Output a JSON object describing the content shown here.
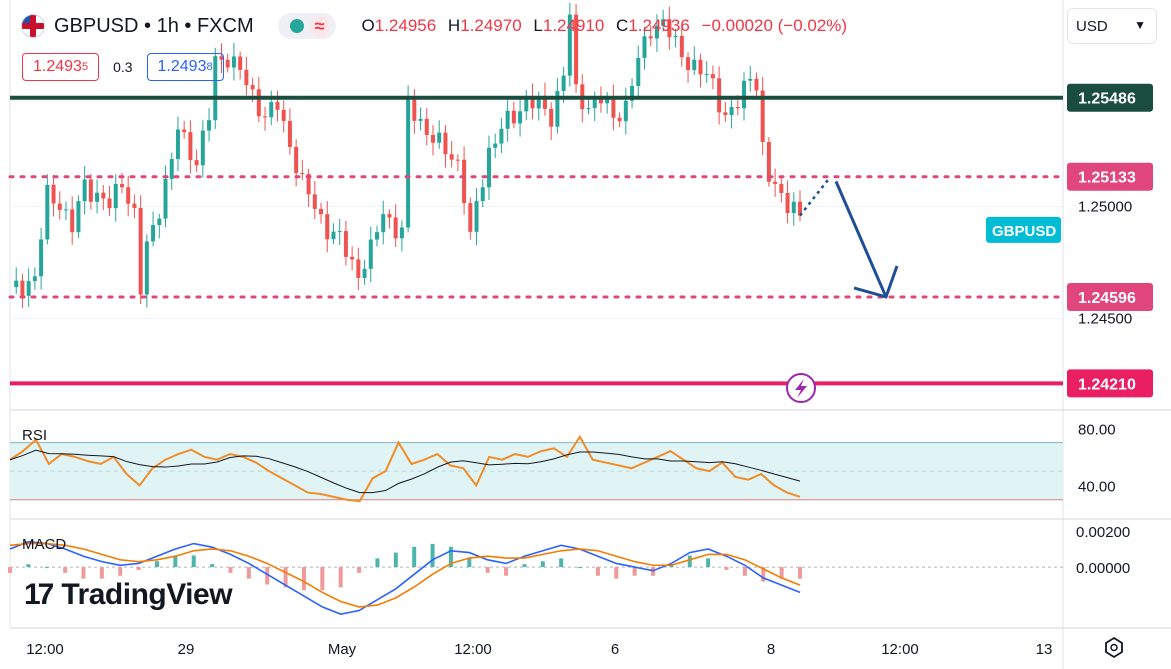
{
  "header": {
    "symbol": "GBPUSD • 1h • FXCM",
    "wave_glyph": "≈",
    "open_label": "O",
    "open": "1.24956",
    "high_label": "H",
    "high": "1.24970",
    "low_label": "L",
    "low": "1.24910",
    "close_label": "C",
    "close": "1.24936",
    "change": "−0.00020 (−0.02%)",
    "sell_price_main": "1.2493",
    "sell_price_small": "5",
    "spread": "0.3",
    "buy_price_main": "1.2493",
    "buy_price_small": "8",
    "currency": "USD"
  },
  "watermark": {
    "logo": "17",
    "text": "TradingView"
  },
  "colors": {
    "up": "#26a69a",
    "down": "#ef5350",
    "support_line": "#1b4d3e",
    "bottom_line": "#e91e63",
    "dotted_level": "#e0457b",
    "arrow": "#1e4e96",
    "rsi_line": "#f28c28",
    "rsi_ma": "#131722",
    "rsi_band": "#e0f4f6",
    "macd_line": "#2962ff",
    "signal_line": "#f57c00",
    "symbol_badge": "#00bcd4"
  },
  "chart_data": {
    "type": "candlestick",
    "symbol_badge": "GBPUSD",
    "ylim": [
      1.241,
      1.259
    ],
    "price_ticks": [
      1.25,
      1.245
    ],
    "price_tick_labels": [
      "1.25000",
      "1.24500"
    ],
    "levels": [
      {
        "value": 1.25486,
        "label": "1.25486",
        "style": "solid",
        "color": "#1b4d3e"
      },
      {
        "value": 1.25133,
        "label": "1.25133",
        "style": "dotted",
        "color": "#e0457b"
      },
      {
        "value": 1.24596,
        "label": "1.24596",
        "style": "dotted",
        "color": "#e0457b"
      },
      {
        "value": 1.2421,
        "label": "1.24210",
        "style": "solid",
        "color": "#e91e63"
      }
    ],
    "x_labels": [
      "12:00",
      "29",
      "May",
      "12:00",
      "6",
      "8",
      "12:00",
      "13"
    ],
    "price_path": [
      [
        0,
        1.2462
      ],
      [
        4,
        1.2468
      ],
      [
        6,
        1.2505
      ],
      [
        8,
        1.2502
      ],
      [
        10,
        1.249
      ],
      [
        12,
        1.251
      ],
      [
        14,
        1.2505
      ],
      [
        16,
        1.25
      ],
      [
        18,
        1.2512
      ],
      [
        20,
        1.2496
      ],
      [
        21,
        1.2462
      ],
      [
        22,
        1.2482
      ],
      [
        24,
        1.25
      ],
      [
        26,
        1.252
      ],
      [
        27,
        1.2535
      ],
      [
        28,
        1.253
      ],
      [
        30,
        1.252
      ],
      [
        32,
        1.254
      ],
      [
        33,
        1.2565
      ],
      [
        35,
        1.2567
      ],
      [
        37,
        1.256
      ],
      [
        39,
        1.255
      ],
      [
        41,
        1.254
      ],
      [
        43,
        1.2545
      ],
      [
        45,
        1.2528
      ],
      [
        47,
        1.251
      ],
      [
        49,
        1.25
      ],
      [
        51,
        1.249
      ],
      [
        53,
        1.2485
      ],
      [
        55,
        1.2475
      ],
      [
        56,
        1.247
      ],
      [
        58,
        1.248
      ],
      [
        60,
        1.2498
      ],
      [
        62,
        1.249
      ],
      [
        63,
        1.2488
      ],
      [
        64,
        1.2545
      ],
      [
        66,
        1.2538
      ],
      [
        68,
        1.253
      ],
      [
        70,
        1.2525
      ],
      [
        72,
        1.252
      ],
      [
        73,
        1.2505
      ],
      [
        74,
        1.2485
      ],
      [
        75,
        1.25
      ],
      [
        77,
        1.2525
      ],
      [
        79,
        1.2535
      ],
      [
        81,
        1.254
      ],
      [
        83,
        1.2548
      ],
      [
        85,
        1.2545
      ],
      [
        87,
        1.254
      ],
      [
        89,
        1.256
      ],
      [
        90,
        1.2585
      ],
      [
        91,
        1.255
      ],
      [
        93,
        1.2545
      ],
      [
        95,
        1.2548
      ],
      [
        97,
        1.254
      ],
      [
        99,
        1.2545
      ],
      [
        101,
        1.2565
      ],
      [
        103,
        1.258
      ],
      [
        105,
        1.2582
      ],
      [
        107,
        1.2572
      ],
      [
        109,
        1.2565
      ],
      [
        111,
        1.256
      ],
      [
        113,
        1.2555
      ],
      [
        115,
        1.254
      ],
      [
        117,
        1.2545
      ],
      [
        119,
        1.256
      ],
      [
        120,
        1.2555
      ],
      [
        121,
        1.2525
      ],
      [
        122,
        1.2512
      ],
      [
        124,
        1.2505
      ],
      [
        126,
        1.25
      ],
      [
        127,
        1.2494
      ]
    ],
    "projection": {
      "dotted_to": [
        1.2513
      ],
      "arrow_to": 1.24596
    },
    "rsi": {
      "label": "RSI",
      "ylim": [
        20,
        90
      ],
      "band": [
        30,
        70
      ],
      "ticks": [
        80,
        40
      ],
      "tick_labels": [
        "80.00",
        "40.00"
      ],
      "values": [
        58,
        64,
        72,
        55,
        62,
        60,
        57,
        55,
        60,
        48,
        40,
        52,
        58,
        62,
        65,
        60,
        58,
        62,
        60,
        56,
        50,
        45,
        40,
        35,
        34,
        32,
        30,
        29,
        45,
        50,
        70,
        55,
        58,
        62,
        54,
        52,
        40,
        60,
        58,
        62,
        60,
        64,
        66,
        60,
        74,
        58,
        56,
        54,
        52,
        56,
        60,
        64,
        58,
        52,
        50,
        56,
        46,
        44,
        48,
        40,
        35,
        32
      ]
    },
    "macd": {
      "label": "MACD",
      "ylim": [
        -0.0032,
        0.0026
      ],
      "ticks": [
        0.002,
        0.0
      ],
      "tick_labels": [
        "0.00200",
        "0.00000"
      ],
      "macd": [
        0.001,
        0.0014,
        0.0013,
        0.001,
        0.0006,
        0.0003,
        0.0001,
        0.0002,
        0.0006,
        0.001,
        0.0013,
        0.0011,
        0.0007,
        0.0002,
        -0.0004,
        -0.001,
        -0.0016,
        -0.0022,
        -0.0026,
        -0.0024,
        -0.0018,
        -0.0012,
        -0.0004,
        0.0004,
        0.0009,
        0.0008,
        0.0004,
        0.0002,
        0.0006,
        0.0009,
        0.0012,
        0.001,
        0.0006,
        0.0002,
        0.0,
        -0.0002,
        0.0002,
        0.0008,
        0.001,
        0.0006,
        0.0001,
        -0.0006,
        -0.001,
        -0.0014
      ],
      "signal": [
        0.0012,
        0.0013,
        0.0013,
        0.0012,
        0.001,
        0.0007,
        0.0004,
        0.0003,
        0.0004,
        0.0006,
        0.0009,
        0.001,
        0.0009,
        0.0006,
        0.0002,
        -0.0003,
        -0.0008,
        -0.0014,
        -0.0019,
        -0.0022,
        -0.0021,
        -0.0017,
        -0.0011,
        -0.0004,
        0.0002,
        0.0005,
        0.0006,
        0.0005,
        0.0005,
        0.0007,
        0.0009,
        0.001,
        0.0009,
        0.0006,
        0.0003,
        0.0001,
        0.0001,
        0.0004,
        0.0007,
        0.0007,
        0.0004,
        -0.0001,
        -0.0006,
        -0.001
      ]
    }
  }
}
